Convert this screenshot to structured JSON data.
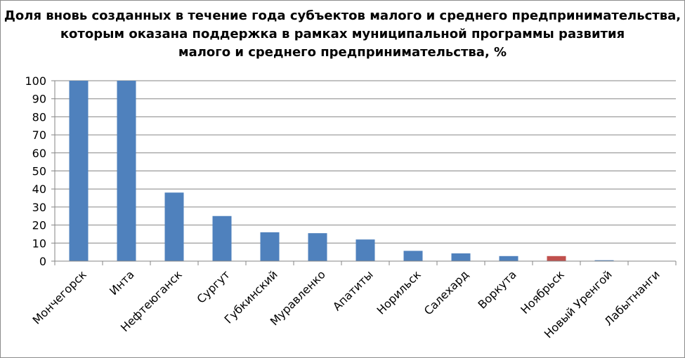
{
  "chart_data": {
    "type": "bar",
    "title_lines": [
      "Доля вновь созданных в течение года субъектов малого и среднего предпринимательства,",
      "которым оказана поддержка в рамках муниципальной программы развития",
      "малого и среднего предпринимательства, %"
    ],
    "categories": [
      "Мончегорск",
      "Инта",
      "Нефтеюганск",
      "Сургут",
      "Губкинский",
      "Муравленко",
      "Апатиты",
      "Норильск",
      "Салехард",
      "Воркута",
      "Ноябрьск",
      "Новый Уренгой",
      "Лабытнанги"
    ],
    "values": [
      100,
      100,
      38,
      25,
      16,
      15.5,
      12,
      5.7,
      4.3,
      2.8,
      2.8,
      0.5,
      0
    ],
    "bar_colors": [
      "#4f81bd",
      "#4f81bd",
      "#4f81bd",
      "#4f81bd",
      "#4f81bd",
      "#4f81bd",
      "#4f81bd",
      "#4f81bd",
      "#4f81bd",
      "#4f81bd",
      "#c0504d",
      "#4f81bd",
      "#4f81bd"
    ],
    "ylim": [
      0,
      100
    ],
    "yticks": [
      "0",
      "10",
      "20",
      "30",
      "40",
      "50",
      "60",
      "70",
      "80",
      "90",
      "100"
    ],
    "grid": true,
    "legend": false,
    "xlabel": "",
    "ylabel": ""
  }
}
